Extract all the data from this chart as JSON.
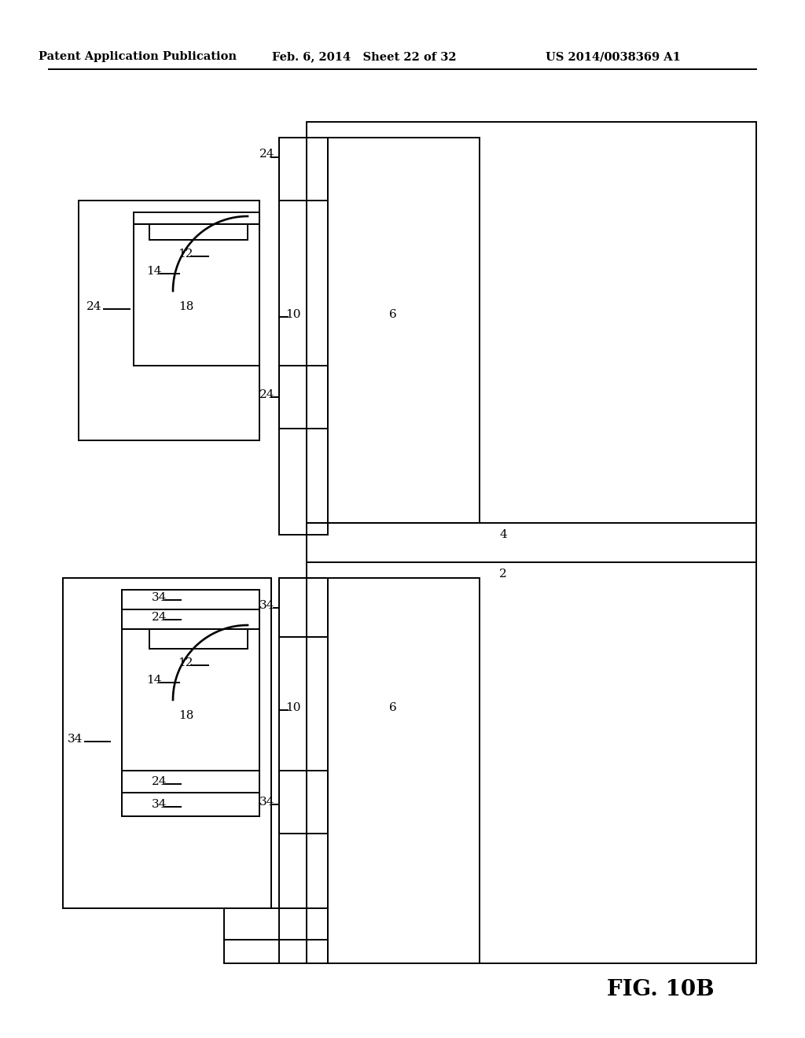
{
  "title_left": "Patent Application Publication",
  "title_mid": "Feb. 6, 2014   Sheet 22 of 32",
  "title_right": "US 2014/0038369 A1",
  "fig_label": "FIG. 10B",
  "bg_color": "#ffffff",
  "line_color": "#000000",
  "header_fontsize": 10.5,
  "label_fontsize": 11
}
